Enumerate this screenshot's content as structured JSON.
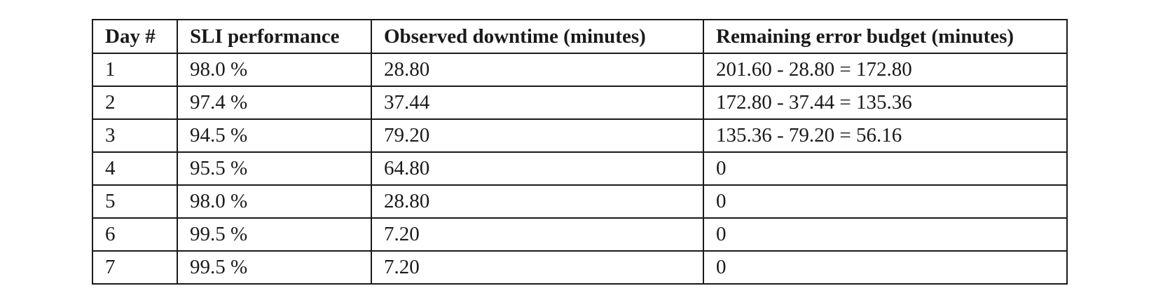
{
  "table": {
    "headers": [
      "Day #",
      "SLI performance",
      "Observed downtime (minutes)",
      "Remaining error budget (minutes)"
    ],
    "rows": [
      [
        "1",
        "98.0 %",
        "28.80",
        "201.60 - 28.80 = 172.80"
      ],
      [
        "2",
        "97.4 %",
        "37.44",
        "172.80 - 37.44 = 135.36"
      ],
      [
        "3",
        "94.5 %",
        "79.20",
        "135.36 - 79.20 = 56.16"
      ],
      [
        "4",
        "95.5 %",
        "64.80",
        "0"
      ],
      [
        "5",
        "98.0 %",
        "28.80",
        "0"
      ],
      [
        "6",
        "99.5 %",
        "7.20",
        "0"
      ],
      [
        "7",
        "99.5 %",
        "7.20",
        "0"
      ]
    ]
  }
}
